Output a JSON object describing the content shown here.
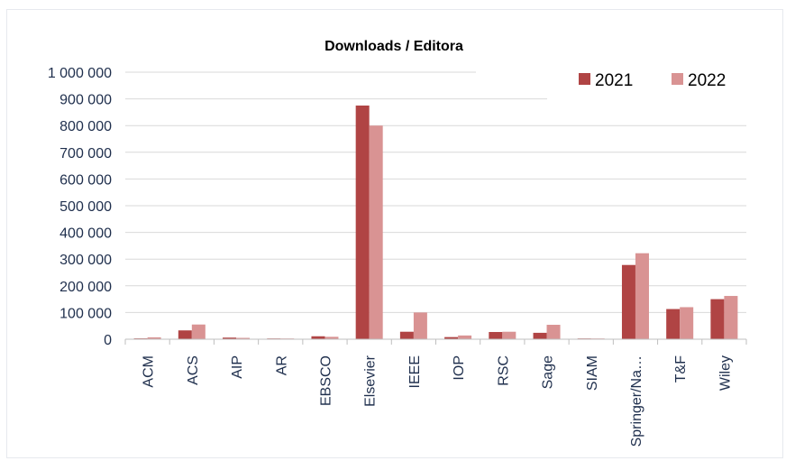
{
  "chart_data": {
    "type": "bar",
    "title": "Downloads / Editora",
    "xlabel": "",
    "ylabel": "",
    "ylim": [
      0,
      1000000
    ],
    "yticks": [
      0,
      100000,
      200000,
      300000,
      400000,
      500000,
      600000,
      700000,
      800000,
      900000,
      1000000
    ],
    "ytick_labels": [
      "0",
      "100 000",
      "200 000",
      "300 000",
      "400 000",
      "500 000",
      "600 000",
      "700 000",
      "800 000",
      "900 000",
      "1 000 000"
    ],
    "grid": true,
    "legend_position": "top-right",
    "categories": [
      "ACM",
      "ACS",
      "AIP",
      "AR",
      "EBSCO",
      "Elsevier",
      "IEEE",
      "IOP",
      "RSC",
      "Sage",
      "SIAM",
      "Springer/Na…",
      "T&F",
      "Wiley"
    ],
    "series": [
      {
        "name": "2021",
        "color": "#b04444",
        "values": [
          3000,
          33000,
          6000,
          1500,
          11000,
          875000,
          28000,
          8000,
          27000,
          24000,
          1000,
          278000,
          113000,
          150000
        ]
      },
      {
        "name": "2022",
        "color": "#d99393",
        "values": [
          7000,
          55000,
          5000,
          2000,
          9000,
          800000,
          100000,
          14000,
          28000,
          54000,
          500,
          322000,
          120000,
          162000
        ]
      }
    ]
  }
}
